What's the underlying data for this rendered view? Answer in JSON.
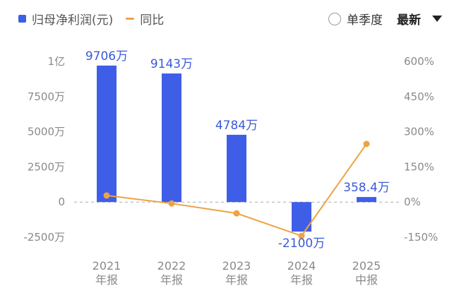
{
  "legend": {
    "bar_label": "归母净利润(元)",
    "line_label": "同比"
  },
  "controls": {
    "single_quarter": "单季度",
    "latest": "最新"
  },
  "colors": {
    "bar": "#3f5ee8",
    "line": "#eda344",
    "zero_line": "#aaaaaa"
  },
  "chart_data": {
    "type": "bar",
    "categories": [
      [
        "2021",
        "年报"
      ],
      [
        "2022",
        "年报"
      ],
      [
        "2023",
        "年报"
      ],
      [
        "2024",
        "年报"
      ],
      [
        "2025",
        "中报"
      ]
    ],
    "series": [
      {
        "name": "归母净利润(元)",
        "type": "bar",
        "axis": "left",
        "values": [
          97060000,
          91430000,
          47840000,
          -21000000,
          3584000
        ],
        "labels": [
          "9706万",
          "9143万",
          "4784万",
          "-2100万",
          "358.4万"
        ]
      },
      {
        "name": "同比",
        "type": "line",
        "axis": "right",
        "values": [
          28,
          -6,
          -48,
          -144,
          248
        ]
      }
    ],
    "y_left": {
      "ylim": [
        -25000000,
        100000000
      ],
      "ticks": [
        -25000000,
        0,
        25000000,
        50000000,
        75000000,
        100000000
      ],
      "tick_labels": [
        "-2500万",
        "0",
        "2500万",
        "5000万",
        "7500万",
        "1亿"
      ]
    },
    "y_right": {
      "ylim": [
        -150,
        600
      ],
      "tick_labels": [
        "-150%",
        "0%",
        "150%",
        "300%",
        "450%",
        "600%"
      ]
    }
  }
}
